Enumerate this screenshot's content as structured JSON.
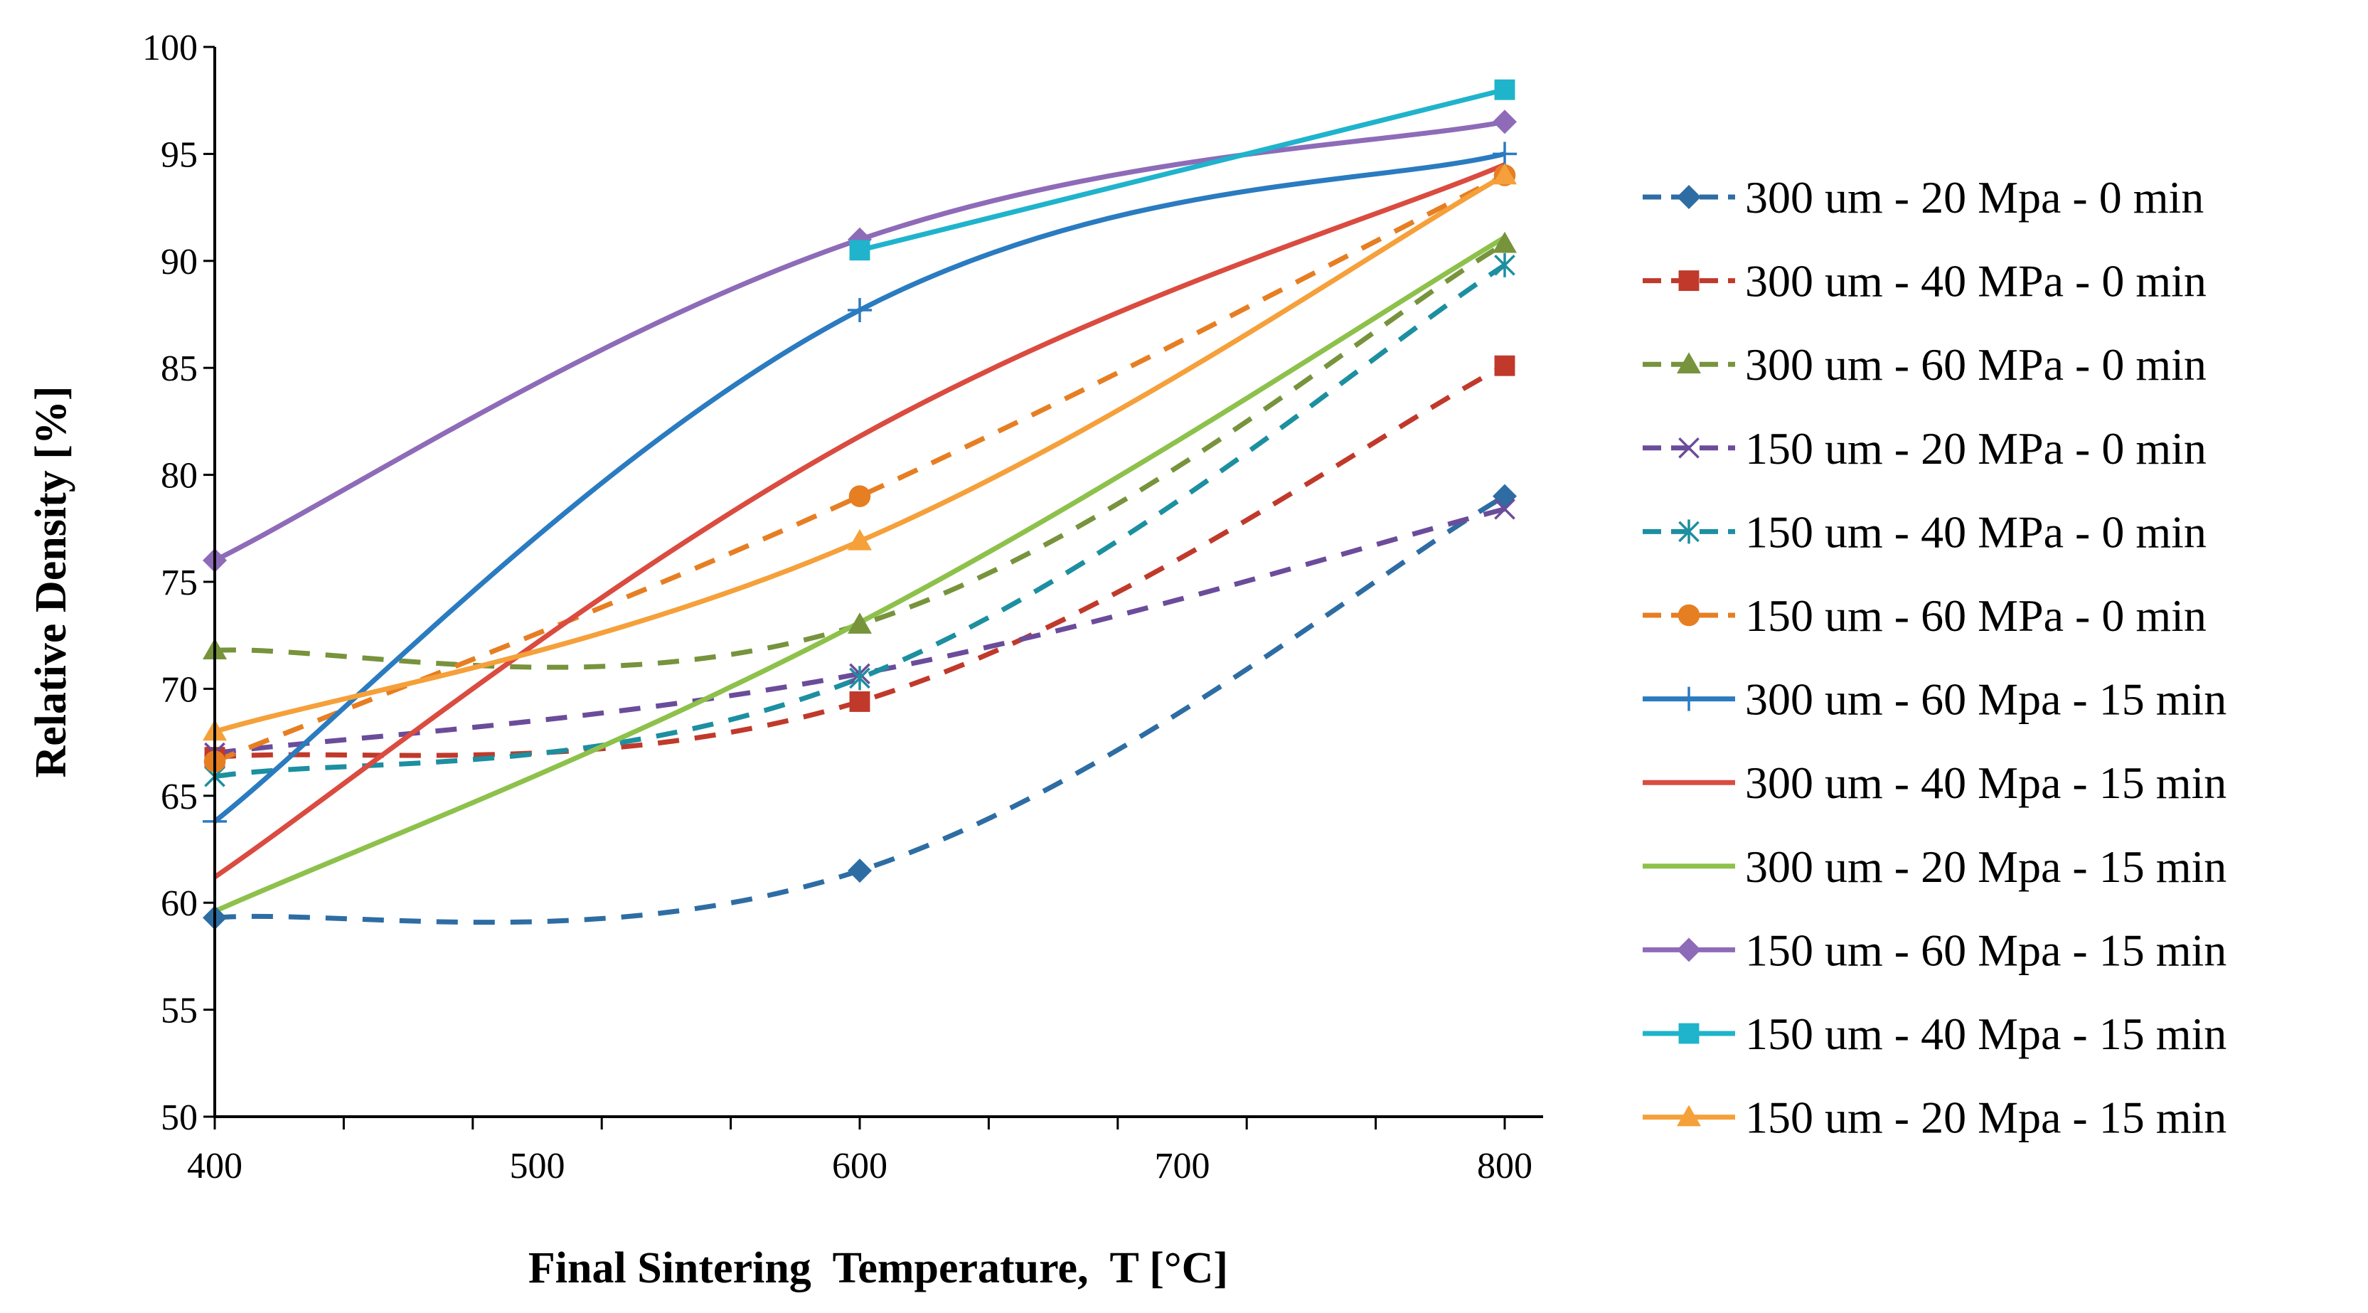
{
  "chart_data": {
    "type": "line",
    "title": "",
    "xlabel": "Final Sintering  Temperature,  T [°C]",
    "ylabel": "Relative Density [%]",
    "xlim": [
      400,
      800
    ],
    "ylim": [
      50,
      100
    ],
    "x_ticks": [
      400,
      500,
      600,
      700,
      800
    ],
    "x_tick_labels": [
      "400",
      "500",
      "600",
      "700",
      "800"
    ],
    "x_minor_step": 40,
    "y_ticks": [
      50,
      55,
      60,
      65,
      70,
      75,
      80,
      85,
      90,
      95,
      100
    ],
    "y_tick_labels": [
      "50",
      "55",
      "60",
      "65",
      "70",
      "75",
      "80",
      "85",
      "90",
      "95",
      "100"
    ],
    "grid": false,
    "legend_position": "right",
    "x": [
      400,
      600,
      800
    ],
    "series": [
      {
        "name": "300 um - 20 Mpa - 0 min",
        "values": [
          59.3,
          61.5,
          79.0
        ],
        "color": "#2E6DA4",
        "dash": true,
        "marker": "diamond"
      },
      {
        "name": "300 um - 40 MPa - 0 min",
        "values": [
          66.8,
          69.4,
          85.1
        ],
        "color": "#C0392B",
        "dash": true,
        "marker": "square"
      },
      {
        "name": "300 um - 60 MPa - 0 min",
        "values": [
          71.8,
          73.0,
          90.8
        ],
        "color": "#77933C",
        "dash": true,
        "marker": "triangle"
      },
      {
        "name": "150 um - 20 MPa - 0 min",
        "values": [
          67.0,
          70.7,
          78.4
        ],
        "color": "#6B4C9A",
        "dash": true,
        "marker": "x"
      },
      {
        "name": "150 um - 40 MPa - 0 min",
        "values": [
          65.9,
          70.5,
          89.8
        ],
        "color": "#1C8FA0",
        "dash": true,
        "marker": "star"
      },
      {
        "name": "150 um - 60 MPa - 0 min",
        "values": [
          66.6,
          79.0,
          94.0
        ],
        "color": "#E67E22",
        "dash": true,
        "marker": "circle"
      },
      {
        "name": "300 um - 60 Mpa - 15 min",
        "values": [
          63.8,
          87.7,
          95.0
        ],
        "color": "#2A7BC0",
        "dash": false,
        "marker": "plus"
      },
      {
        "name": "300 um - 40 Mpa - 15 min",
        "values": [
          61.2,
          81.8,
          94.5
        ],
        "color": "#DA4B40",
        "dash": false,
        "marker": "none"
      },
      {
        "name": "300 um - 20 Mpa - 15 min",
        "values": [
          59.6,
          73.1,
          91.1
        ],
        "color": "#8DC14B",
        "dash": false,
        "marker": "none"
      },
      {
        "name": "150 um - 60 Mpa - 15 min",
        "values": [
          76.0,
          91.0,
          96.5
        ],
        "color": "#8E6BB8",
        "dash": false,
        "marker": "diamond"
      },
      {
        "name": "150 um - 40 Mpa - 15 min",
        "values": [
          null,
          90.5,
          98.0
        ],
        "color": "#1FB3CC",
        "dash": false,
        "marker": "square"
      },
      {
        "name": "150 um - 20 Mpa - 15 min",
        "values": [
          68.0,
          76.9,
          94.0
        ],
        "color": "#F5A03A",
        "dash": false,
        "marker": "triangle"
      }
    ]
  }
}
